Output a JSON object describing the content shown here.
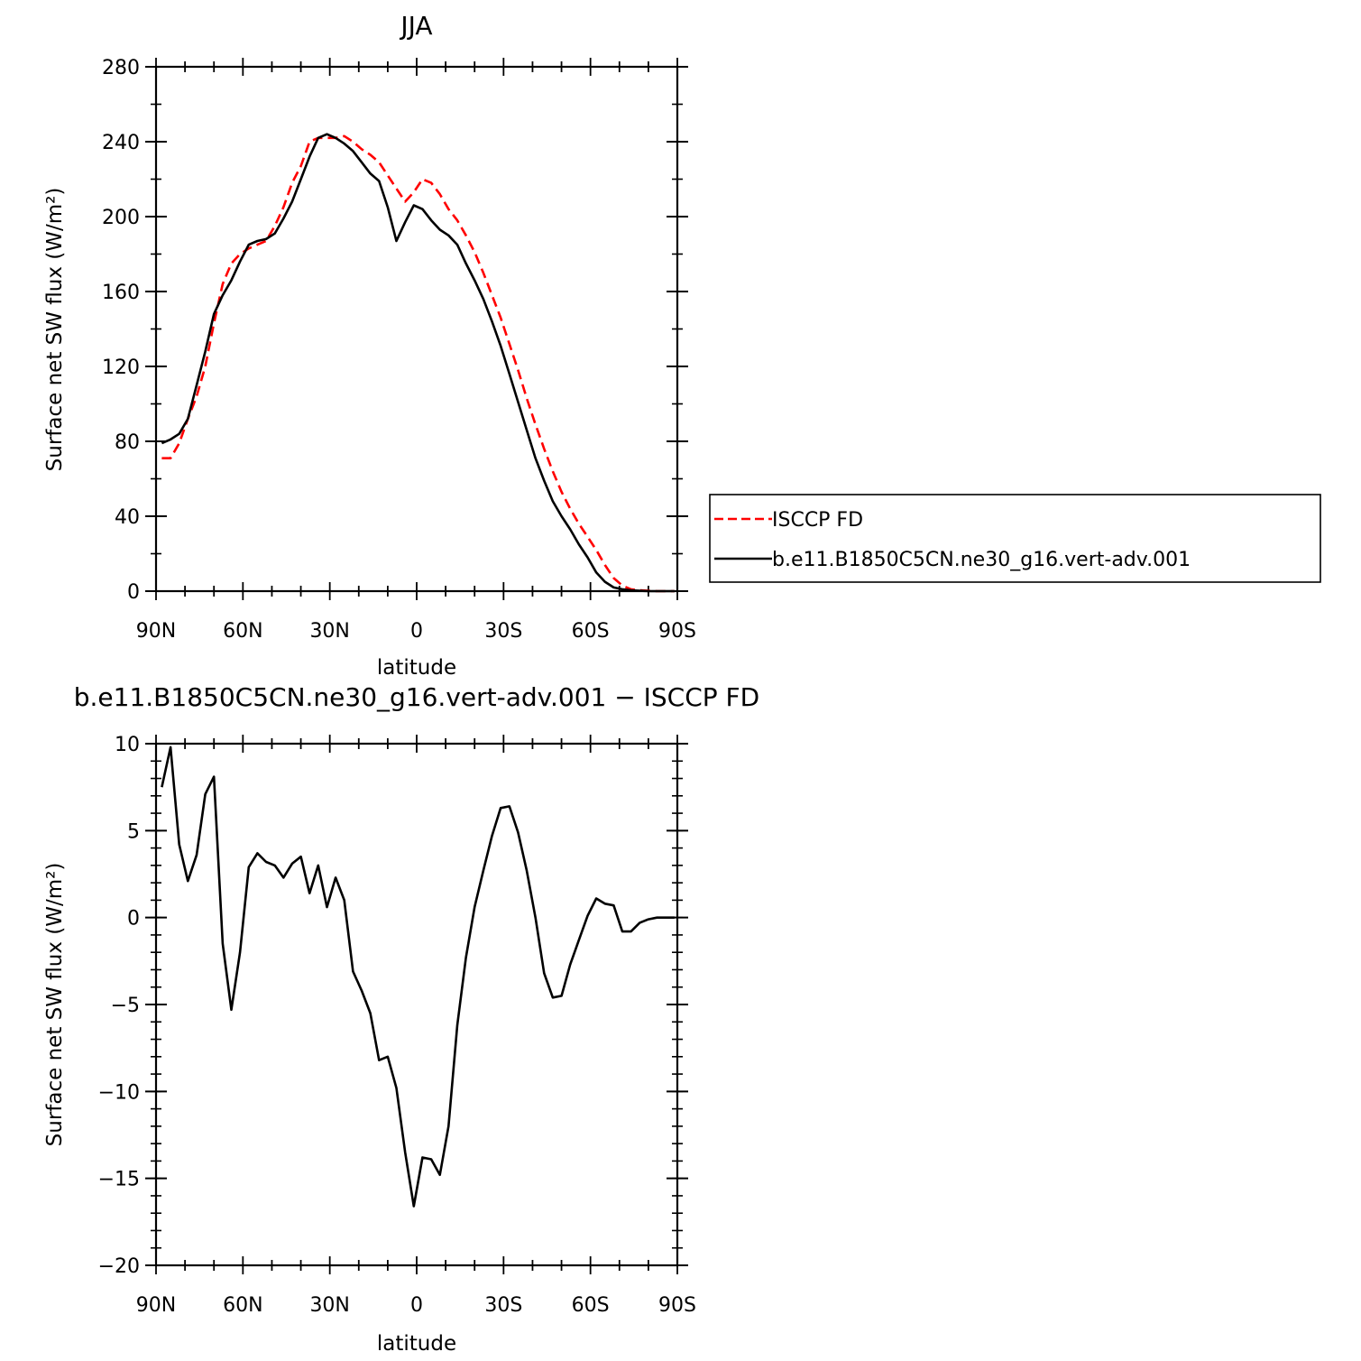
{
  "chart_data": [
    {
      "type": "line",
      "title": "JJA",
      "xlabel": "latitude",
      "ylabel": "Surface net SW flux (W/m²)",
      "xlim": [
        -90,
        90
      ],
      "ylim": [
        0,
        280
      ],
      "x_direction": "north-to-south",
      "xticks": [
        {
          "value": -90,
          "label": "90N"
        },
        {
          "value": -60,
          "label": "60N"
        },
        {
          "value": -30,
          "label": "30N"
        },
        {
          "value": 0,
          "label": "0"
        },
        {
          "value": 30,
          "label": "30S"
        },
        {
          "value": 60,
          "label": "60S"
        },
        {
          "value": 90,
          "label": "90S"
        }
      ],
      "yticks": [
        0,
        40,
        80,
        120,
        160,
        200,
        240,
        280
      ],
      "legend_position": "right, outside plot area",
      "series": [
        {
          "name": "ISCCP FD",
          "color": "#ff0000",
          "style": "dashed",
          "x": [
            -88,
            -85,
            -82,
            -79,
            -76,
            -73,
            -70,
            -67,
            -64,
            -61,
            -58,
            -55,
            -52,
            -49,
            -46,
            -43,
            -40,
            -37,
            -34,
            -31,
            -28,
            -25,
            -22,
            -19,
            -16,
            -13,
            -10,
            -7,
            -4,
            -1,
            2,
            5,
            8,
            11,
            14,
            17,
            20,
            23,
            26,
            29,
            32,
            35,
            38,
            41,
            44,
            47,
            50,
            53,
            56,
            59,
            62,
            65,
            68,
            71,
            74,
            77,
            80,
            83,
            86,
            89
          ],
          "values": [
            71,
            71,
            79,
            92,
            104,
            120,
            143,
            164,
            175,
            180,
            183,
            185,
            187,
            195,
            205,
            218,
            227,
            240,
            242,
            242,
            242,
            243,
            240,
            236,
            233,
            229,
            222,
            215,
            208,
            213,
            220,
            218,
            212,
            204,
            198,
            190,
            181,
            170,
            158,
            146,
            132,
            118,
            103,
            89,
            76,
            64,
            53,
            44,
            36,
            29,
            22,
            14,
            7,
            3,
            1,
            0.5,
            0.2,
            0,
            0,
            0
          ]
        },
        {
          "name": "b.e11.B1850C5CN.ne30_g16.vert-adv.001",
          "color": "#000000",
          "style": "solid",
          "x": [
            -88,
            -85,
            -82,
            -79,
            -76,
            -73,
            -70,
            -67,
            -64,
            -61,
            -58,
            -55,
            -52,
            -49,
            -46,
            -43,
            -40,
            -37,
            -34,
            -31,
            -28,
            -25,
            -22,
            -19,
            -16,
            -13,
            -10,
            -7,
            -4,
            -1,
            2,
            5,
            8,
            11,
            14,
            17,
            20,
            23,
            26,
            29,
            32,
            35,
            38,
            41,
            44,
            47,
            50,
            53,
            56,
            59,
            62,
            65,
            68,
            71,
            74,
            77,
            80,
            83,
            86,
            89
          ],
          "values": [
            79,
            81,
            84,
            92,
            110,
            128,
            148,
            158,
            166,
            176,
            185,
            187,
            188,
            191,
            199,
            208,
            220,
            232,
            242,
            244,
            242,
            239,
            235,
            229,
            223,
            219,
            205,
            187,
            197,
            206,
            204,
            198,
            193,
            190,
            185,
            175,
            166,
            156,
            144,
            131,
            116,
            101,
            86,
            71,
            59,
            48,
            40,
            33,
            25,
            18,
            10,
            5,
            2,
            1,
            0.5,
            0.2,
            0,
            0,
            0,
            0
          ]
        }
      ]
    },
    {
      "type": "line",
      "title": "b.e11.B1850C5CN.ne30_g16.vert-adv.001 − ISCCP FD",
      "xlabel": "latitude",
      "ylabel": "Surface net SW flux (W/m²)",
      "xlim": [
        -90,
        90
      ],
      "ylim": [
        -20,
        10
      ],
      "x_direction": "north-to-south",
      "xticks": [
        {
          "value": -90,
          "label": "90N"
        },
        {
          "value": -60,
          "label": "60N"
        },
        {
          "value": -30,
          "label": "30N"
        },
        {
          "value": 0,
          "label": "0"
        },
        {
          "value": 30,
          "label": "30S"
        },
        {
          "value": 60,
          "label": "60S"
        },
        {
          "value": 90,
          "label": "90S"
        }
      ],
      "yticks": [
        {
          "value": -20,
          "label": "−20"
        },
        {
          "value": -15,
          "label": "−15"
        },
        {
          "value": -10,
          "label": "−10"
        },
        {
          "value": -5,
          "label": "−5"
        },
        {
          "value": 0,
          "label": "0"
        },
        {
          "value": 5,
          "label": "5"
        },
        {
          "value": 10,
          "label": "10"
        }
      ],
      "series": [
        {
          "color": "#000000",
          "style": "solid",
          "x": [
            -88,
            -85,
            -82,
            -79,
            -76,
            -73,
            -70,
            -67,
            -64,
            -61,
            -58,
            -55,
            -52,
            -49,
            -46,
            -43,
            -40,
            -37,
            -34,
            -31,
            -28,
            -25,
            -22,
            -19,
            -16,
            -13,
            -10,
            -7,
            -4,
            -1,
            2,
            5,
            8,
            11,
            14,
            17,
            20,
            23,
            26,
            29,
            32,
            35,
            38,
            41,
            44,
            47,
            50,
            53,
            56,
            59,
            62,
            65,
            68,
            71,
            74,
            77,
            80,
            83,
            86,
            89
          ],
          "values": [
            7.5,
            9.8,
            4.2,
            2.1,
            3.6,
            7.1,
            8.1,
            -1.5,
            -5.3,
            -2.0,
            2.9,
            3.7,
            3.2,
            3.0,
            2.3,
            3.1,
            3.5,
            1.4,
            3.0,
            0.6,
            2.3,
            1.0,
            -3.1,
            -4.2,
            -5.5,
            -8.2,
            -8.0,
            -9.8,
            -13.5,
            -16.6,
            -13.8,
            -13.9,
            -14.8,
            -12.0,
            -6.2,
            -2.3,
            0.6,
            2.7,
            4.7,
            6.3,
            6.4,
            4.9,
            2.7,
            0,
            -3.2,
            -4.6,
            -4.5,
            -2.7,
            -1.3,
            0.1,
            1.1,
            0.8,
            0.7,
            -0.8,
            -0.8,
            -0.3,
            -0.1,
            0,
            0,
            0
          ]
        }
      ]
    }
  ]
}
